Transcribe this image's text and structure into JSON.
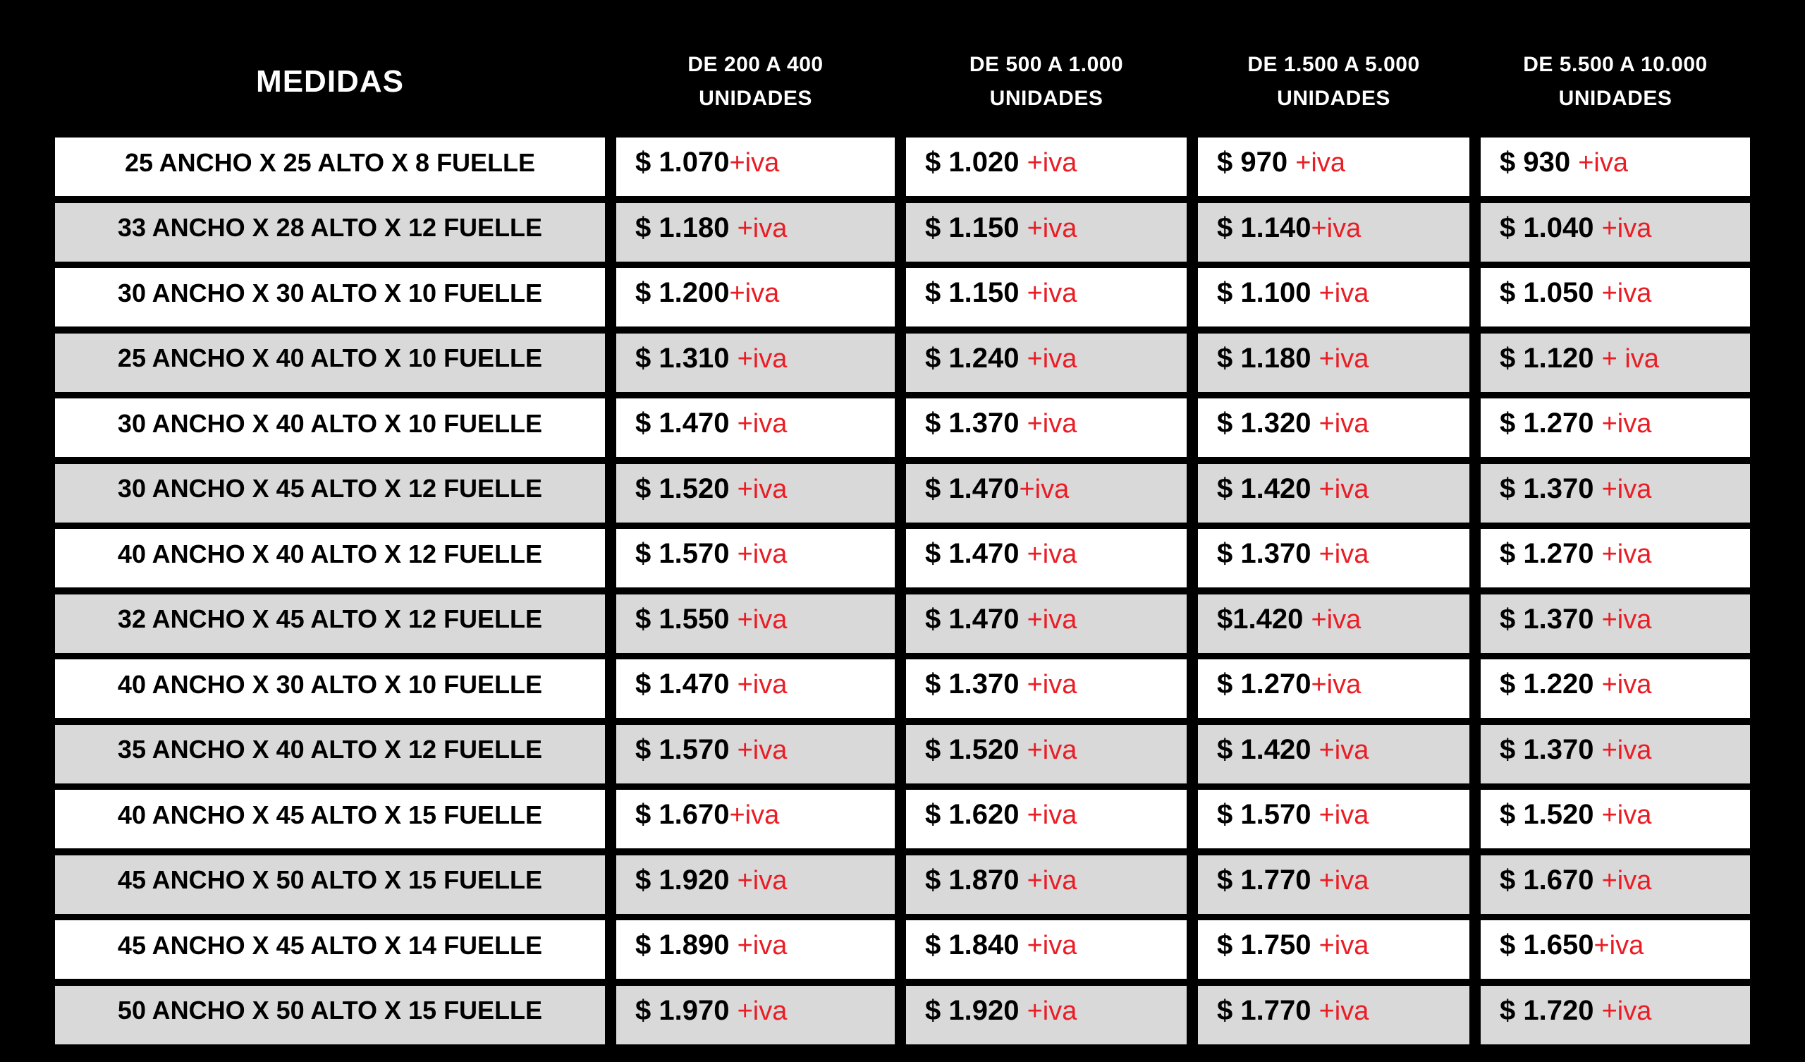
{
  "colors": {
    "background": "#000000",
    "header_text": "#ffffff",
    "row_white": "#ffffff",
    "row_gray": "#d9d9d9",
    "price_text": "#000000",
    "accent_red": "#ea1d25"
  },
  "table": {
    "header": {
      "medidas": "MEDIDAS",
      "price_cols": [
        {
          "range": "DE 200 A 400",
          "units": "UNIDADES"
        },
        {
          "range": "DE 500 A 1.000",
          "units": "UNIDADES"
        },
        {
          "range": "DE 1.500 A 5.000",
          "units": "UNIDADES"
        },
        {
          "range": "DE 5.500 A 10.000",
          "units": "UNIDADES"
        }
      ]
    },
    "rows": [
      {
        "medida": "25 ANCHO X 25 ALTO X 8 FUELLE",
        "prices": [
          {
            "black": "$ 1.070",
            "red": "+iva"
          },
          {
            "black": "$ 1.020 ",
            "red": "+iva"
          },
          {
            "black": "$ 970 ",
            "red": "+iva"
          },
          {
            "black": "$ 930 ",
            "red": "+iva"
          }
        ]
      },
      {
        "medida": "33 ANCHO X 28 ALTO X 12 FUELLE",
        "prices": [
          {
            "black": "$ 1.180 ",
            "red": "+iva"
          },
          {
            "black": "$ 1.150 ",
            "red": "+iva"
          },
          {
            "black": "$ 1.140",
            "red": "+iva"
          },
          {
            "black": "$ 1.040 ",
            "red": "+iva"
          }
        ]
      },
      {
        "medida": "30 ANCHO X 30 ALTO X 10 FUELLE",
        "prices": [
          {
            "black": "$ 1.200",
            "red": "+iva"
          },
          {
            "black": "$ 1.150 ",
            "red": "+iva"
          },
          {
            "black": "$ 1.100 ",
            "red": "+iva"
          },
          {
            "black": "$ 1.050 ",
            "red": "+iva"
          }
        ]
      },
      {
        "medida": "25 ANCHO X 40 ALTO X 10 FUELLE",
        "prices": [
          {
            "black": "$ 1.310 ",
            "red": "+iva"
          },
          {
            "black": "$ 1.240 ",
            "red": "+iva"
          },
          {
            "black": "$ 1.180 ",
            "red": "+iva"
          },
          {
            "black": "$ 1.120 ",
            "red": "+ iva"
          }
        ]
      },
      {
        "medida": "30 ANCHO X 40 ALTO X 10 FUELLE",
        "prices": [
          {
            "black": "$ 1.470 ",
            "red": "+iva"
          },
          {
            "black": "$ 1.370 ",
            "red": "+iva"
          },
          {
            "black": "$ 1.320 ",
            "red": "+iva"
          },
          {
            "black": "$ 1.270 ",
            "red": "+iva"
          }
        ]
      },
      {
        "medida": "30 ANCHO X 45 ALTO X 12 FUELLE",
        "prices": [
          {
            "black": "$ 1.520 ",
            "red": "+iva"
          },
          {
            "black": "$ 1.470",
            "red": "+iva"
          },
          {
            "black": "$ 1.420 ",
            "red": "+iva"
          },
          {
            "black": "$ 1.370 ",
            "red": "+iva"
          }
        ]
      },
      {
        "medida": "40 ANCHO X 40 ALTO X 12 FUELLE",
        "prices": [
          {
            "black": "$ 1.570 ",
            "red": "+iva"
          },
          {
            "black": "$ 1.470 ",
            "red": "+iva"
          },
          {
            "black": "$ 1.370 ",
            "red": "+iva"
          },
          {
            "black": "$ 1.270 ",
            "red": "+iva"
          }
        ]
      },
      {
        "medida": "32 ANCHO X 45 ALTO X 12 FUELLE",
        "prices": [
          {
            "black": "$ 1.550 ",
            "red": "+iva"
          },
          {
            "black": "$ 1.470 ",
            "red": "+iva"
          },
          {
            "black": "$1.420 ",
            "red": "+iva"
          },
          {
            "black": "$ 1.370 ",
            "red": "+iva"
          }
        ]
      },
      {
        "medida": "40 ANCHO X 30 ALTO X 10 FUELLE",
        "prices": [
          {
            "black": "$ 1.470 ",
            "red": "+iva"
          },
          {
            "black": "$ 1.370 ",
            "red": "+iva"
          },
          {
            "black": "$ 1.270",
            "red": "+iva"
          },
          {
            "black": "$ 1.220 ",
            "red": "+iva"
          }
        ]
      },
      {
        "medida": "35 ANCHO X 40 ALTO X 12 FUELLE",
        "prices": [
          {
            "black": "$ 1.570 ",
            "red": "+iva"
          },
          {
            "black": "$ 1.520 ",
            "red": "+iva"
          },
          {
            "black": "$ 1.420 ",
            "red": "+iva"
          },
          {
            "black": "$ 1.370 ",
            "red": "+iva"
          }
        ]
      },
      {
        "medida": "40 ANCHO X 45 ALTO X 15 FUELLE",
        "prices": [
          {
            "black": "$ 1.670",
            "red": "+iva"
          },
          {
            "black": "$ 1.620 ",
            "red": "+iva"
          },
          {
            "black": "$ 1.570 ",
            "red": "+iva"
          },
          {
            "black": "$ 1.520 ",
            "red": "+iva"
          }
        ]
      },
      {
        "medida": "45 ANCHO X 50 ALTO X 15 FUELLE",
        "prices": [
          {
            "black": "$ 1.920 ",
            "red": "+iva"
          },
          {
            "black": "$ 1.870 ",
            "red": "+iva"
          },
          {
            "black": "$ 1.770 ",
            "red": "+iva"
          },
          {
            "black": "$ 1.670 ",
            "red": "+iva"
          }
        ]
      },
      {
        "medida": "45 ANCHO X 45 ALTO X 14 FUELLE",
        "prices": [
          {
            "black": "$ 1.890 ",
            "red": "+iva"
          },
          {
            "black": "$ 1.840 ",
            "red": "+iva"
          },
          {
            "black": "$ 1.750 ",
            "red": "+iva"
          },
          {
            "black": "$ 1.650",
            "red": "+iva"
          }
        ]
      },
      {
        "medida": "50 ANCHO X 50 ALTO X 15 FUELLE",
        "prices": [
          {
            "black": "$ 1.970 ",
            "red": "+iva"
          },
          {
            "black": "$ 1.920 ",
            "red": "+iva"
          },
          {
            "black": "$ 1.770 ",
            "red": "+iva"
          },
          {
            "black": "$ 1.720 ",
            "red": "+iva"
          }
        ]
      }
    ]
  }
}
